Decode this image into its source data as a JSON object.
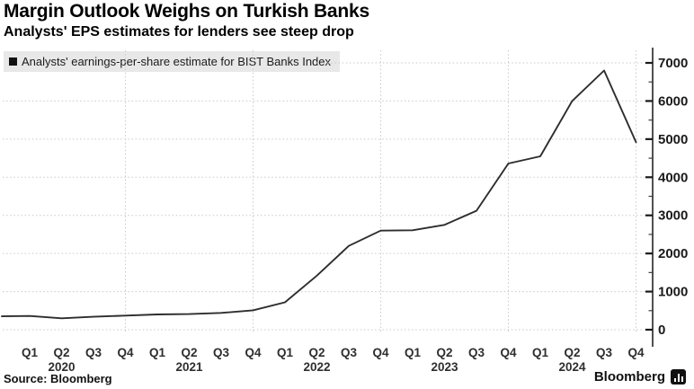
{
  "header": {
    "title": "Margin Outlook Weighs on Turkish Banks",
    "subtitle": "Analysts' EPS estimates for lenders see steep drop"
  },
  "legend": {
    "label": "Analysts' earnings-per-share estimate for BIST Banks Index"
  },
  "footer": {
    "source_label": "Source: Bloomberg",
    "brand": "Bloomberg"
  },
  "chart_data": {
    "type": "line",
    "title": "Margin Outlook Weighs on Turkish Banks",
    "subtitle": "Analysts' EPS estimates for lenders see steep drop",
    "legend_position": "top-left",
    "axis_position": "right",
    "grid": {
      "horizontal": "dotted",
      "vertical_at_indices": [
        3,
        7,
        11,
        15,
        19
      ]
    },
    "categories": [
      "Q1",
      "Q2",
      "Q3",
      "Q4",
      "Q1",
      "Q2",
      "Q3",
      "Q4",
      "Q1",
      "Q2",
      "Q3",
      "Q4",
      "Q1",
      "Q2",
      "Q3",
      "Q4",
      "Q1",
      "Q2",
      "Q3",
      "Q4"
    ],
    "year_labels": [
      {
        "text": "2020",
        "at_index": 1
      },
      {
        "text": "2021",
        "at_index": 5
      },
      {
        "text": "2022",
        "at_index": 9
      },
      {
        "text": "2023",
        "at_index": 13
      },
      {
        "text": "2024",
        "at_index": 17
      }
    ],
    "series": [
      {
        "name": "Analysts' earnings-per-share estimate for BIST Banks Index",
        "values": [
          360,
          300,
          340,
          370,
          400,
          410,
          440,
          510,
          720,
          1420,
          2200,
          2600,
          2610,
          2750,
          3120,
          4360,
          4550,
          6000,
          6800,
          4920
        ]
      }
    ],
    "left_edge_value": 350,
    "ylim": [
      0,
      7000
    ],
    "yticks": [
      0,
      1000,
      2000,
      3000,
      4000,
      5000,
      6000,
      7000
    ],
    "y_minor_step": 500,
    "colors": {
      "line": "#2d2d2d",
      "grid": "#c9c9c9",
      "axis": "#3c3c3c",
      "tick": "#1a1a1a",
      "label": "#2e2e2e",
      "legend_bg": "#e8e8e8"
    }
  }
}
